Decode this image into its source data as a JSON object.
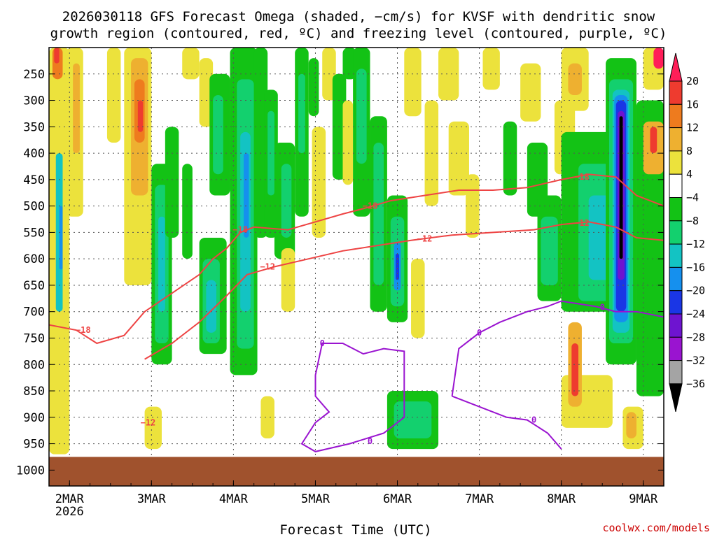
{
  "chart_data": {
    "type": "heatmap",
    "title_line1": "2026030118 GFS Forecast Omega (shaded, −cm/s) for KVSF with dendritic snow",
    "title_line2": "growth region (contoured, red, ºC) and freezing level (contoured, purple, ºC)",
    "xlabel": "Forecast Time (UTC)",
    "credit": "coolwx.com/models",
    "x_ticks": [
      {
        "label": "2MAR",
        "sub": "2026",
        "hour": 6
      },
      {
        "label": "3MAR",
        "hour": 30
      },
      {
        "label": "4MAR",
        "hour": 54
      },
      {
        "label": "5MAR",
        "hour": 78
      },
      {
        "label": "6MAR",
        "hour": 102
      },
      {
        "label": "7MAR",
        "hour": 126
      },
      {
        "label": "8MAR",
        "hour": 150
      },
      {
        "label": "9MAR",
        "hour": 174
      }
    ],
    "x_range": [
      0,
      180
    ],
    "y_ticks": [
      250,
      300,
      350,
      400,
      450,
      500,
      550,
      600,
      650,
      700,
      750,
      800,
      850,
      900,
      950,
      1000
    ],
    "y_range": [
      200,
      1030
    ],
    "ground_level": 975,
    "colorbar_levels": [
      "20",
      "16",
      "12",
      "8",
      "4",
      "−4",
      "−8",
      "−12",
      "−16",
      "−20",
      "−24",
      "−28",
      "−32",
      "−36"
    ],
    "colorbar_colors": [
      "#ff1e58",
      "#ee3b2f",
      "#ee7b1e",
      "#eeb030",
      "#ece23c",
      "#ffffff",
      "#13c215",
      "#13d06e",
      "#13c3c3",
      "#1590ee",
      "#1a36e5",
      "#6e14d0",
      "#9a14d0",
      "#a4a4a4",
      "#000000"
    ],
    "contours": {
      "dgz_top_label": "−18",
      "dgz_bottom_label": "−12",
      "freezing_label": "0",
      "dgz_color": "#ee4444",
      "freezing_color": "#9a14d0"
    },
    "ground_color": "#a0522d",
    "shading": [
      {
        "x0": 0,
        "x1": 6,
        "p0": 200,
        "p1": 970,
        "c": 4
      },
      {
        "x0": 2,
        "x1": 4,
        "p0": 400,
        "p1": 700,
        "c": 8
      },
      {
        "x0": 3,
        "x1": 4,
        "p0": 500,
        "p1": 620,
        "c": 9
      },
      {
        "x0": 1,
        "x1": 4,
        "p0": 200,
        "p1": 260,
        "c": 2
      },
      {
        "x0": 1.5,
        "x1": 3,
        "p0": 200,
        "p1": 230,
        "c": 1
      },
      {
        "x0": 5,
        "x1": 10,
        "p0": 200,
        "p1": 520,
        "c": 4
      },
      {
        "x0": 7,
        "x1": 9,
        "p0": 230,
        "p1": 400,
        "c": 3
      },
      {
        "x0": 17,
        "x1": 21,
        "p0": 200,
        "p1": 380,
        "c": 4
      },
      {
        "x0": 22,
        "x1": 30,
        "p0": 200,
        "p1": 650,
        "c": 4
      },
      {
        "x0": 24,
        "x1": 29,
        "p0": 220,
        "p1": 480,
        "c": 3
      },
      {
        "x0": 25,
        "x1": 28,
        "p0": 260,
        "p1": 380,
        "c": 2
      },
      {
        "x0": 26,
        "x1": 27.5,
        "p0": 300,
        "p1": 360,
        "c": 1
      },
      {
        "x0": 28,
        "x1": 33,
        "p0": 880,
        "p1": 960,
        "c": 4
      },
      {
        "x0": 0,
        "x1": 5,
        "p0": 880,
        "p1": 960,
        "c": 4
      },
      {
        "x0": 30,
        "x1": 36,
        "p0": 420,
        "p1": 800,
        "c": 6
      },
      {
        "x0": 31,
        "x1": 35,
        "p0": 460,
        "p1": 760,
        "c": 7
      },
      {
        "x0": 32,
        "x1": 34,
        "p0": 520,
        "p1": 700,
        "c": 8
      },
      {
        "x0": 34,
        "x1": 38,
        "p0": 350,
        "p1": 560,
        "c": 6
      },
      {
        "x0": 39,
        "x1": 42,
        "p0": 420,
        "p1": 600,
        "c": 6
      },
      {
        "x0": 39,
        "x1": 44,
        "p0": 200,
        "p1": 260,
        "c": 4
      },
      {
        "x0": 44,
        "x1": 48,
        "p0": 220,
        "p1": 350,
        "c": 4
      },
      {
        "x0": 44,
        "x1": 52,
        "p0": 560,
        "p1": 780,
        "c": 6
      },
      {
        "x0": 45,
        "x1": 50,
        "p0": 600,
        "p1": 760,
        "c": 7
      },
      {
        "x0": 46,
        "x1": 49,
        "p0": 640,
        "p1": 740,
        "c": 8
      },
      {
        "x0": 47,
        "x1": 53,
        "p0": 250,
        "p1": 480,
        "c": 6
      },
      {
        "x0": 48,
        "x1": 51,
        "p0": 290,
        "p1": 440,
        "c": 7
      },
      {
        "x0": 53,
        "x1": 61,
        "p0": 200,
        "p1": 820,
        "c": 6
      },
      {
        "x0": 55,
        "x1": 60,
        "p0": 260,
        "p1": 770,
        "c": 7
      },
      {
        "x0": 56,
        "x1": 59,
        "p0": 360,
        "p1": 700,
        "c": 8
      },
      {
        "x0": 57,
        "x1": 58.5,
        "p0": 400,
        "p1": 560,
        "c": 9
      },
      {
        "x0": 60,
        "x1": 64,
        "p0": 200,
        "p1": 560,
        "c": 6
      },
      {
        "x0": 63,
        "x1": 67,
        "p0": 280,
        "p1": 560,
        "c": 6
      },
      {
        "x0": 64,
        "x1": 66,
        "p0": 320,
        "p1": 480,
        "c": 7
      },
      {
        "x0": 66,
        "x1": 72,
        "p0": 380,
        "p1": 600,
        "c": 6
      },
      {
        "x0": 68,
        "x1": 71,
        "p0": 420,
        "p1": 560,
        "c": 7
      },
      {
        "x0": 62,
        "x1": 66,
        "p0": 860,
        "p1": 940,
        "c": 4
      },
      {
        "x0": 68,
        "x1": 72,
        "p0": 580,
        "p1": 700,
        "c": 4
      },
      {
        "x0": 72,
        "x1": 76,
        "p0": 200,
        "p1": 520,
        "c": 6
      },
      {
        "x0": 73,
        "x1": 75,
        "p0": 250,
        "p1": 400,
        "c": 7
      },
      {
        "x0": 76,
        "x1": 79,
        "p0": 220,
        "p1": 330,
        "c": 6
      },
      {
        "x0": 77,
        "x1": 81,
        "p0": 350,
        "p1": 560,
        "c": 4
      },
      {
        "x0": 80,
        "x1": 84,
        "p0": 200,
        "p1": 300,
        "c": 4
      },
      {
        "x0": 83,
        "x1": 87,
        "p0": 250,
        "p1": 450,
        "c": 6
      },
      {
        "x0": 86,
        "x1": 89,
        "p0": 300,
        "p1": 460,
        "c": 4
      },
      {
        "x0": 86,
        "x1": 90,
        "p0": 200,
        "p1": 260,
        "c": 6
      },
      {
        "x0": 89,
        "x1": 94,
        "p0": 200,
        "p1": 520,
        "c": 6
      },
      {
        "x0": 90,
        "x1": 93,
        "p0": 240,
        "p1": 420,
        "c": 7
      },
      {
        "x0": 94,
        "x1": 99,
        "p0": 330,
        "p1": 700,
        "c": 6
      },
      {
        "x0": 95,
        "x1": 98,
        "p0": 380,
        "p1": 650,
        "c": 7
      },
      {
        "x0": 99,
        "x1": 105,
        "p0": 480,
        "p1": 720,
        "c": 6
      },
      {
        "x0": 100,
        "x1": 104,
        "p0": 520,
        "p1": 690,
        "c": 7
      },
      {
        "x0": 101,
        "x1": 103,
        "p0": 570,
        "p1": 660,
        "c": 9
      },
      {
        "x0": 101.5,
        "x1": 102.5,
        "p0": 590,
        "p1": 640,
        "c": 10
      },
      {
        "x0": 99,
        "x1": 114,
        "p0": 850,
        "p1": 960,
        "c": 6
      },
      {
        "x0": 101,
        "x1": 112,
        "p0": 870,
        "p1": 940,
        "c": 7
      },
      {
        "x0": 106,
        "x1": 110,
        "p0": 600,
        "p1": 750,
        "c": 4
      },
      {
        "x0": 104,
        "x1": 109,
        "p0": 200,
        "p1": 330,
        "c": 4
      },
      {
        "x0": 110,
        "x1": 114,
        "p0": 300,
        "p1": 500,
        "c": 4
      },
      {
        "x0": 114,
        "x1": 120,
        "p0": 200,
        "p1": 300,
        "c": 4
      },
      {
        "x0": 117,
        "x1": 123,
        "p0": 340,
        "p1": 480,
        "c": 4
      },
      {
        "x0": 122,
        "x1": 126,
        "p0": 440,
        "p1": 560,
        "c": 4
      },
      {
        "x0": 127,
        "x1": 132,
        "p0": 200,
        "p1": 280,
        "c": 4
      },
      {
        "x0": 133,
        "x1": 137,
        "p0": 340,
        "p1": 480,
        "c": 6
      },
      {
        "x0": 138,
        "x1": 144,
        "p0": 230,
        "p1": 340,
        "c": 4
      },
      {
        "x0": 140,
        "x1": 146,
        "p0": 380,
        "p1": 520,
        "c": 6
      },
      {
        "x0": 143,
        "x1": 150,
        "p0": 480,
        "p1": 680,
        "c": 6
      },
      {
        "x0": 144,
        "x1": 149,
        "p0": 520,
        "p1": 650,
        "c": 7
      },
      {
        "x0": 148,
        "x1": 154,
        "p0": 300,
        "p1": 440,
        "c": 4
      },
      {
        "x0": 150,
        "x1": 158,
        "p0": 200,
        "p1": 320,
        "c": 4
      },
      {
        "x0": 152,
        "x1": 156,
        "p0": 230,
        "p1": 290,
        "c": 3
      },
      {
        "x0": 150,
        "x1": 170,
        "p0": 360,
        "p1": 700,
        "c": 6
      },
      {
        "x0": 155,
        "x1": 168,
        "p0": 420,
        "p1": 680,
        "c": 7
      },
      {
        "x0": 158,
        "x1": 166,
        "p0": 480,
        "p1": 640,
        "c": 8
      },
      {
        "x0": 163,
        "x1": 172,
        "p0": 220,
        "p1": 800,
        "c": 6
      },
      {
        "x0": 164,
        "x1": 171,
        "p0": 260,
        "p1": 760,
        "c": 7
      },
      {
        "x0": 165,
        "x1": 170,
        "p0": 280,
        "p1": 740,
        "c": 8
      },
      {
        "x0": 165.5,
        "x1": 169.5,
        "p0": 290,
        "p1": 720,
        "c": 9
      },
      {
        "x0": 166,
        "x1": 169,
        "p0": 300,
        "p1": 700,
        "c": 10
      },
      {
        "x0": 166.5,
        "x1": 168.5,
        "p0": 320,
        "p1": 640,
        "c": 11
      },
      {
        "x0": 167,
        "x1": 168,
        "p0": 330,
        "p1": 600,
        "c": 14
      },
      {
        "x0": 172,
        "x1": 180,
        "p0": 300,
        "p1": 860,
        "c": 6
      },
      {
        "x0": 174,
        "x1": 180,
        "p0": 340,
        "p1": 440,
        "c": 3
      },
      {
        "x0": 176,
        "x1": 178,
        "p0": 350,
        "p1": 400,
        "c": 1
      },
      {
        "x0": 174,
        "x1": 180,
        "p0": 200,
        "p1": 280,
        "c": 4
      },
      {
        "x0": 177,
        "x1": 180,
        "p0": 200,
        "p1": 240,
        "c": 0
      },
      {
        "x0": 150,
        "x1": 165,
        "p0": 820,
        "p1": 920,
        "c": 4
      },
      {
        "x0": 152,
        "x1": 156,
        "p0": 720,
        "p1": 880,
        "c": 3
      },
      {
        "x0": 153,
        "x1": 155,
        "p0": 760,
        "p1": 860,
        "c": 1
      },
      {
        "x0": 168,
        "x1": 174,
        "p0": 880,
        "p1": 960,
        "c": 4
      },
      {
        "x0": 169,
        "x1": 172,
        "p0": 890,
        "p1": 940,
        "c": 3
      }
    ],
    "dgz_top_line": [
      [
        0,
        725
      ],
      [
        8,
        735
      ],
      [
        14,
        760
      ],
      [
        22,
        745
      ],
      [
        28,
        700
      ],
      [
        36,
        665
      ],
      [
        44,
        630
      ],
      [
        48,
        600
      ],
      [
        52,
        580
      ],
      [
        56,
        550
      ],
      [
        60,
        540
      ],
      [
        70,
        545
      ],
      [
        78,
        530
      ],
      [
        86,
        515
      ],
      [
        92,
        505
      ],
      [
        100,
        490
      ],
      [
        110,
        480
      ],
      [
        120,
        470
      ],
      [
        130,
        470
      ],
      [
        140,
        465
      ],
      [
        150,
        450
      ],
      [
        158,
        440
      ],
      [
        166,
        445
      ],
      [
        172,
        480
      ],
      [
        180,
        500
      ]
    ],
    "dgz_bottom_line": [
      [
        28,
        790
      ],
      [
        36,
        760
      ],
      [
        44,
        720
      ],
      [
        52,
        670
      ],
      [
        58,
        630
      ],
      [
        66,
        615
      ],
      [
        76,
        600
      ],
      [
        86,
        585
      ],
      [
        96,
        575
      ],
      [
        106,
        565
      ],
      [
        118,
        555
      ],
      [
        130,
        550
      ],
      [
        142,
        545
      ],
      [
        150,
        535
      ],
      [
        158,
        530
      ],
      [
        166,
        540
      ],
      [
        172,
        560
      ],
      [
        180,
        565
      ]
    ],
    "freezing_line": [
      [
        78,
        820
      ],
      [
        80,
        760
      ],
      [
        86,
        760
      ],
      [
        92,
        780
      ],
      [
        98,
        770
      ],
      [
        104,
        775
      ],
      [
        104,
        900
      ],
      [
        98,
        930
      ],
      [
        88,
        950
      ],
      [
        78,
        965
      ],
      [
        74,
        950
      ],
      [
        78,
        910
      ],
      [
        82,
        890
      ],
      [
        78,
        860
      ],
      [
        78,
        820
      ]
    ],
    "freezing_line2": [
      [
        118,
        860
      ],
      [
        120,
        770
      ],
      [
        126,
        740
      ],
      [
        132,
        720
      ],
      [
        140,
        700
      ],
      [
        146,
        690
      ],
      [
        150,
        680
      ],
      [
        160,
        690
      ],
      [
        166,
        700
      ],
      [
        172,
        700
      ],
      [
        180,
        710
      ]
    ],
    "freezing_line3": [
      [
        118,
        860
      ],
      [
        126,
        880
      ],
      [
        134,
        900
      ],
      [
        140,
        905
      ],
      [
        146,
        930
      ],
      [
        150,
        960
      ]
    ]
  }
}
